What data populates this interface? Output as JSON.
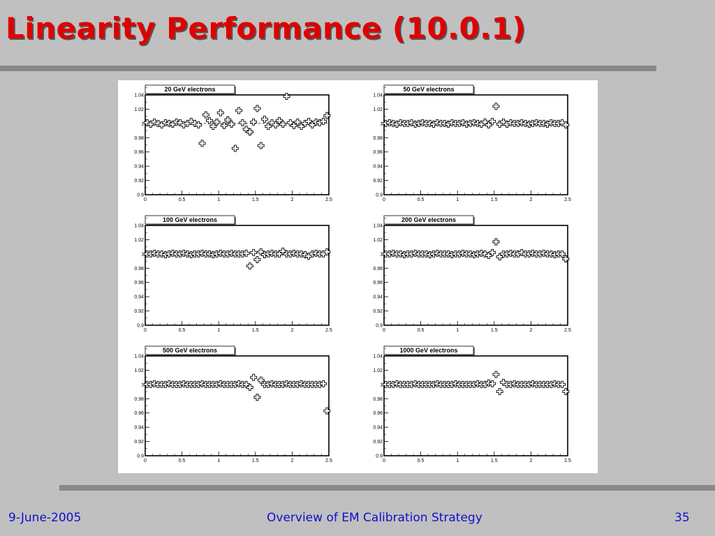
{
  "slide": {
    "title": "Linearity Performance (10.0.1)"
  },
  "footer": {
    "date": "9-June-2005",
    "center": "Overview of EM Calibration Strategy",
    "page": "35"
  },
  "colors": {
    "title": "#e00000",
    "footer_text": "#1010cc",
    "background": "#c0c0c0",
    "rule": "#888888",
    "marker": "#000000"
  },
  "chart_data": [
    {
      "type": "scatter",
      "title": "20 GeV electrons",
      "xlim": [
        0,
        2.5
      ],
      "ylim": [
        0.9,
        1.04
      ],
      "xticks": [
        "0",
        "0.5",
        "1",
        "1.5",
        "2",
        "2.5"
      ],
      "yticks": [
        "0.9",
        "0.92",
        "0.94",
        "0.96",
        "0.98",
        "1",
        "1.02",
        "1.04"
      ],
      "marker": "open-cross",
      "grid": false,
      "reference_line": 1,
      "points": [
        [
          0.025,
          1.001
        ],
        [
          0.075,
          0.999
        ],
        [
          0.125,
          1.002
        ],
        [
          0.175,
          1.0
        ],
        [
          0.225,
          0.998
        ],
        [
          0.275,
          1.001
        ],
        [
          0.325,
          1.0
        ],
        [
          0.375,
          0.999
        ],
        [
          0.425,
          1.002
        ],
        [
          0.475,
          1.001
        ],
        [
          0.525,
          0.998
        ],
        [
          0.575,
          1.0
        ],
        [
          0.625,
          1.003
        ],
        [
          0.675,
          1.0
        ],
        [
          0.725,
          0.998
        ],
        [
          0.775,
          0.972
        ],
        [
          0.825,
          1.012
        ],
        [
          0.875,
          1.004
        ],
        [
          0.925,
          0.996
        ],
        [
          0.975,
          1.002
        ],
        [
          1.025,
          1.015
        ],
        [
          1.075,
          0.997
        ],
        [
          1.125,
          1.005
        ],
        [
          1.175,
          0.999
        ],
        [
          1.225,
          0.965
        ],
        [
          1.275,
          1.018
        ],
        [
          1.325,
          1.001
        ],
        [
          1.375,
          0.992
        ],
        [
          1.425,
          0.988
        ],
        [
          1.475,
          1.002
        ],
        [
          1.525,
          1.021
        ],
        [
          1.575,
          0.969
        ],
        [
          1.625,
          1.006
        ],
        [
          1.675,
          0.996
        ],
        [
          1.725,
          1.001
        ],
        [
          1.775,
          0.998
        ],
        [
          1.825,
          1.004
        ],
        [
          1.875,
          0.999
        ],
        [
          1.925,
          1.038
        ],
        [
          1.975,
          1.001
        ],
        [
          2.025,
          0.997
        ],
        [
          2.075,
          1.002
        ],
        [
          2.125,
          0.996
        ],
        [
          2.175,
          1.0
        ],
        [
          2.225,
          1.003
        ],
        [
          2.275,
          0.998
        ],
        [
          2.325,
          1.002
        ],
        [
          2.375,
          1.001
        ],
        [
          2.425,
          1.003
        ],
        [
          2.475,
          1.011
        ]
      ]
    },
    {
      "type": "scatter",
      "title": "50 GeV electrons",
      "xlim": [
        0,
        2.5
      ],
      "ylim": [
        0.9,
        1.04
      ],
      "xticks": [
        "0",
        "0.5",
        "1",
        "1.5",
        "2",
        "2.5"
      ],
      "yticks": [
        "0.9",
        "0.92",
        "0.94",
        "0.96",
        "0.98",
        "1",
        "1.02",
        "1.04"
      ],
      "marker": "open-cross",
      "grid": false,
      "points": [
        [
          0.025,
          1.0
        ],
        [
          0.075,
          1.001
        ],
        [
          0.125,
          1.0
        ],
        [
          0.175,
          0.999
        ],
        [
          0.225,
          1.001
        ],
        [
          0.275,
          1.0
        ],
        [
          0.325,
          1.0
        ],
        [
          0.375,
          1.001
        ],
        [
          0.425,
          0.999
        ],
        [
          0.475,
          1.0
        ],
        [
          0.525,
          1.001
        ],
        [
          0.575,
          1.0
        ],
        [
          0.625,
          1.0
        ],
        [
          0.675,
          0.999
        ],
        [
          0.725,
          1.001
        ],
        [
          0.775,
          1.0
        ],
        [
          0.825,
          1.0
        ],
        [
          0.875,
          0.999
        ],
        [
          0.925,
          1.001
        ],
        [
          0.975,
          1.0
        ],
        [
          1.025,
          1.0
        ],
        [
          1.075,
          1.001
        ],
        [
          1.125,
          0.999
        ],
        [
          1.175,
          1.0
        ],
        [
          1.225,
          1.001
        ],
        [
          1.275,
          1.0
        ],
        [
          1.325,
          0.999
        ],
        [
          1.375,
          1.002
        ],
        [
          1.425,
          0.998
        ],
        [
          1.475,
          1.003
        ],
        [
          1.525,
          1.024
        ],
        [
          1.575,
          0.999
        ],
        [
          1.625,
          1.002
        ],
        [
          1.675,
          0.999
        ],
        [
          1.725,
          1.001
        ],
        [
          1.775,
          1.0
        ],
        [
          1.825,
          1.0
        ],
        [
          1.875,
          1.001
        ],
        [
          1.925,
          1.0
        ],
        [
          1.975,
          0.999
        ],
        [
          2.025,
          1.0
        ],
        [
          2.075,
          1.001
        ],
        [
          2.125,
          1.0
        ],
        [
          2.175,
          1.0
        ],
        [
          2.225,
          0.999
        ],
        [
          2.275,
          1.001
        ],
        [
          2.325,
          1.0
        ],
        [
          2.375,
          1.0
        ],
        [
          2.425,
          1.001
        ],
        [
          2.475,
          0.998
        ]
      ]
    },
    {
      "type": "scatter",
      "title": "100 GeV electrons",
      "xlim": [
        0,
        2.5
      ],
      "ylim": [
        0.9,
        1.04
      ],
      "xticks": [
        "0",
        "0.5",
        "1",
        "1.5",
        "2",
        "2.5"
      ],
      "yticks": [
        "0.9",
        "0.92",
        "0.94",
        "0.96",
        "0.98",
        "1",
        "1.02",
        "1.04"
      ],
      "marker": "open-cross",
      "grid": false,
      "points": [
        [
          0.025,
          1.0
        ],
        [
          0.075,
          1.0
        ],
        [
          0.125,
          1.001
        ],
        [
          0.175,
          1.0
        ],
        [
          0.225,
          1.0
        ],
        [
          0.275,
          0.999
        ],
        [
          0.325,
          1.0
        ],
        [
          0.375,
          1.001
        ],
        [
          0.425,
          1.0
        ],
        [
          0.475,
          1.0
        ],
        [
          0.525,
          1.001
        ],
        [
          0.575,
          1.0
        ],
        [
          0.625,
          0.999
        ],
        [
          0.675,
          1.0
        ],
        [
          0.725,
          1.0
        ],
        [
          0.775,
          1.001
        ],
        [
          0.825,
          1.0
        ],
        [
          0.875,
          1.0
        ],
        [
          0.925,
          0.999
        ],
        [
          0.975,
          1.0
        ],
        [
          1.025,
          1.001
        ],
        [
          1.075,
          1.0
        ],
        [
          1.125,
          1.0
        ],
        [
          1.175,
          1.001
        ],
        [
          1.225,
          1.0
        ],
        [
          1.275,
          1.0
        ],
        [
          1.325,
          1.0
        ],
        [
          1.375,
          1.001
        ],
        [
          1.425,
          0.983
        ],
        [
          1.475,
          1.002
        ],
        [
          1.525,
          0.992
        ],
        [
          1.575,
          1.003
        ],
        [
          1.625,
          0.999
        ],
        [
          1.675,
          1.0
        ],
        [
          1.725,
          1.001
        ],
        [
          1.775,
          1.0
        ],
        [
          1.825,
          1.0
        ],
        [
          1.875,
          1.004
        ],
        [
          1.925,
          1.0
        ],
        [
          1.975,
          1.0
        ],
        [
          2.025,
          1.001
        ],
        [
          2.075,
          1.0
        ],
        [
          2.125,
          1.0
        ],
        [
          2.175,
          0.999
        ],
        [
          2.225,
          0.997
        ],
        [
          2.275,
          1.0
        ],
        [
          2.325,
          1.001
        ],
        [
          2.375,
          1.0
        ],
        [
          2.425,
          1.0
        ],
        [
          2.475,
          1.003
        ]
      ]
    },
    {
      "type": "scatter",
      "title": "200 GeV electrons",
      "xlim": [
        0,
        2.5
      ],
      "ylim": [
        0.9,
        1.04
      ],
      "xticks": [
        "0",
        "0.5",
        "1",
        "1.5",
        "2",
        "2.5"
      ],
      "yticks": [
        "0.9",
        "0.92",
        "0.94",
        "0.96",
        "0.98",
        "1",
        "1.02",
        "1.04"
      ],
      "marker": "open-cross",
      "grid": false,
      "points": [
        [
          0.025,
          1.0
        ],
        [
          0.075,
          1.0
        ],
        [
          0.125,
          1.001
        ],
        [
          0.175,
          1.0
        ],
        [
          0.225,
          1.0
        ],
        [
          0.275,
          0.999
        ],
        [
          0.325,
          1.0
        ],
        [
          0.375,
          1.0
        ],
        [
          0.425,
          1.001
        ],
        [
          0.475,
          1.0
        ],
        [
          0.525,
          1.0
        ],
        [
          0.575,
          1.0
        ],
        [
          0.625,
          0.999
        ],
        [
          0.675,
          1.0
        ],
        [
          0.725,
          1.001
        ],
        [
          0.775,
          1.0
        ],
        [
          0.825,
          1.0
        ],
        [
          0.875,
          1.0
        ],
        [
          0.925,
          0.999
        ],
        [
          0.975,
          1.0
        ],
        [
          1.025,
          1.0
        ],
        [
          1.075,
          1.001
        ],
        [
          1.125,
          1.0
        ],
        [
          1.175,
          1.0
        ],
        [
          1.225,
          0.999
        ],
        [
          1.275,
          1.0
        ],
        [
          1.325,
          1.001
        ],
        [
          1.375,
          1.0
        ],
        [
          1.425,
          0.998
        ],
        [
          1.475,
          1.002
        ],
        [
          1.525,
          1.017
        ],
        [
          1.575,
          0.996
        ],
        [
          1.625,
          1.0
        ],
        [
          1.675,
          1.0
        ],
        [
          1.725,
          1.001
        ],
        [
          1.775,
          1.0
        ],
        [
          1.825,
          1.0
        ],
        [
          1.875,
          1.002
        ],
        [
          1.925,
          1.0
        ],
        [
          1.975,
          1.0
        ],
        [
          2.025,
          1.001
        ],
        [
          2.075,
          1.0
        ],
        [
          2.125,
          1.0
        ],
        [
          2.175,
          1.001
        ],
        [
          2.225,
          1.0
        ],
        [
          2.275,
          1.0
        ],
        [
          2.325,
          0.999
        ],
        [
          2.375,
          1.0
        ],
        [
          2.425,
          1.0
        ],
        [
          2.475,
          0.993
        ]
      ]
    },
    {
      "type": "scatter",
      "title": "500 GeV electrons",
      "xlim": [
        0,
        2.5
      ],
      "ylim": [
        0.9,
        1.04
      ],
      "xticks": [
        "0",
        "0.5",
        "1",
        "1.5",
        "2",
        "2.5"
      ],
      "yticks": [
        "0.9",
        "0.92",
        "0.94",
        "0.96",
        "0.98",
        "1",
        "1.02",
        "1.04"
      ],
      "marker": "open-cross",
      "grid": false,
      "points": [
        [
          0.025,
          1.0
        ],
        [
          0.075,
          1.0
        ],
        [
          0.125,
          1.001
        ],
        [
          0.175,
          1.0
        ],
        [
          0.225,
          1.0
        ],
        [
          0.275,
          1.0
        ],
        [
          0.325,
          1.001
        ],
        [
          0.375,
          1.0
        ],
        [
          0.425,
          1.0
        ],
        [
          0.475,
          1.0
        ],
        [
          0.525,
          1.001
        ],
        [
          0.575,
          1.0
        ],
        [
          0.625,
          1.0
        ],
        [
          0.675,
          1.0
        ],
        [
          0.725,
          1.0
        ],
        [
          0.775,
          1.001
        ],
        [
          0.825,
          1.0
        ],
        [
          0.875,
          1.0
        ],
        [
          0.925,
          1.0
        ],
        [
          0.975,
          1.0
        ],
        [
          1.025,
          1.001
        ],
        [
          1.075,
          1.0
        ],
        [
          1.125,
          1.0
        ],
        [
          1.175,
          1.0
        ],
        [
          1.225,
          1.0
        ],
        [
          1.275,
          1.001
        ],
        [
          1.325,
          1.0
        ],
        [
          1.375,
          1.0
        ],
        [
          1.425,
          0.996
        ],
        [
          1.475,
          1.01
        ],
        [
          1.525,
          0.982
        ],
        [
          1.575,
          1.006
        ],
        [
          1.625,
          1.0
        ],
        [
          1.675,
          1.0
        ],
        [
          1.725,
          1.001
        ],
        [
          1.775,
          1.0
        ],
        [
          1.825,
          1.0
        ],
        [
          1.875,
          1.0
        ],
        [
          1.925,
          1.001
        ],
        [
          1.975,
          1.0
        ],
        [
          2.025,
          1.0
        ],
        [
          2.075,
          1.0
        ],
        [
          2.125,
          1.001
        ],
        [
          2.175,
          1.0
        ],
        [
          2.225,
          1.0
        ],
        [
          2.275,
          1.0
        ],
        [
          2.325,
          1.0
        ],
        [
          2.375,
          1.0
        ],
        [
          2.425,
          1.001
        ],
        [
          2.475,
          0.963
        ]
      ]
    },
    {
      "type": "scatter",
      "title": "1000 GeV electrons",
      "xlim": [
        0,
        2.5
      ],
      "ylim": [
        0.9,
        1.04
      ],
      "xticks": [
        "0",
        "0.5",
        "1",
        "1.5",
        "2",
        "2.5"
      ],
      "yticks": [
        "0.9",
        "0.92",
        "0.94",
        "0.96",
        "0.98",
        "1",
        "1.02",
        "1.04"
      ],
      "marker": "open-cross",
      "grid": false,
      "points": [
        [
          0.025,
          1.0
        ],
        [
          0.075,
          1.0
        ],
        [
          0.125,
          1.0
        ],
        [
          0.175,
          1.001
        ],
        [
          0.225,
          1.0
        ],
        [
          0.275,
          1.0
        ],
        [
          0.325,
          1.0
        ],
        [
          0.375,
          1.0
        ],
        [
          0.425,
          1.001
        ],
        [
          0.475,
          1.0
        ],
        [
          0.525,
          1.0
        ],
        [
          0.575,
          1.0
        ],
        [
          0.625,
          1.0
        ],
        [
          0.675,
          1.0
        ],
        [
          0.725,
          1.001
        ],
        [
          0.775,
          1.0
        ],
        [
          0.825,
          1.0
        ],
        [
          0.875,
          1.0
        ],
        [
          0.925,
          1.0
        ],
        [
          0.975,
          1.001
        ],
        [
          1.025,
          1.0
        ],
        [
          1.075,
          1.0
        ],
        [
          1.125,
          1.0
        ],
        [
          1.175,
          1.0
        ],
        [
          1.225,
          1.0
        ],
        [
          1.275,
          1.001
        ],
        [
          1.325,
          1.0
        ],
        [
          1.375,
          1.0
        ],
        [
          1.425,
          1.002
        ],
        [
          1.475,
          1.001
        ],
        [
          1.525,
          1.014
        ],
        [
          1.575,
          0.99
        ],
        [
          1.625,
          1.003
        ],
        [
          1.675,
          1.0
        ],
        [
          1.725,
          1.0
        ],
        [
          1.775,
          1.001
        ],
        [
          1.825,
          1.0
        ],
        [
          1.875,
          1.0
        ],
        [
          1.925,
          1.0
        ],
        [
          1.975,
          1.0
        ],
        [
          2.025,
          1.001
        ],
        [
          2.075,
          1.0
        ],
        [
          2.125,
          1.0
        ],
        [
          2.175,
          1.0
        ],
        [
          2.225,
          1.0
        ],
        [
          2.275,
          1.0
        ],
        [
          2.325,
          1.001
        ],
        [
          2.375,
          1.0
        ],
        [
          2.425,
          1.0
        ],
        [
          2.475,
          0.99
        ]
      ]
    }
  ]
}
